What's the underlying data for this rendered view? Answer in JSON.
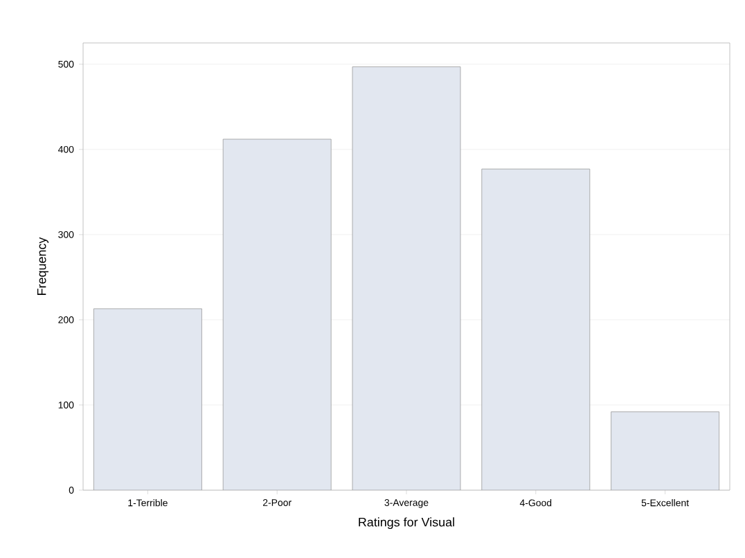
{
  "chart_data": {
    "type": "bar",
    "xlabel": "Ratings for Visual",
    "ylabel": "Frequency",
    "categories": [
      "1-Terrible",
      "2-Poor",
      "3-Average",
      "4-Good",
      "5-Excellent"
    ],
    "values": [
      213,
      412,
      497,
      377,
      92
    ],
    "color": "#e2e7f0",
    "ylim": [
      0,
      525
    ],
    "yticks": [
      0,
      100,
      200,
      300,
      400,
      500
    ],
    "grid": "y"
  }
}
